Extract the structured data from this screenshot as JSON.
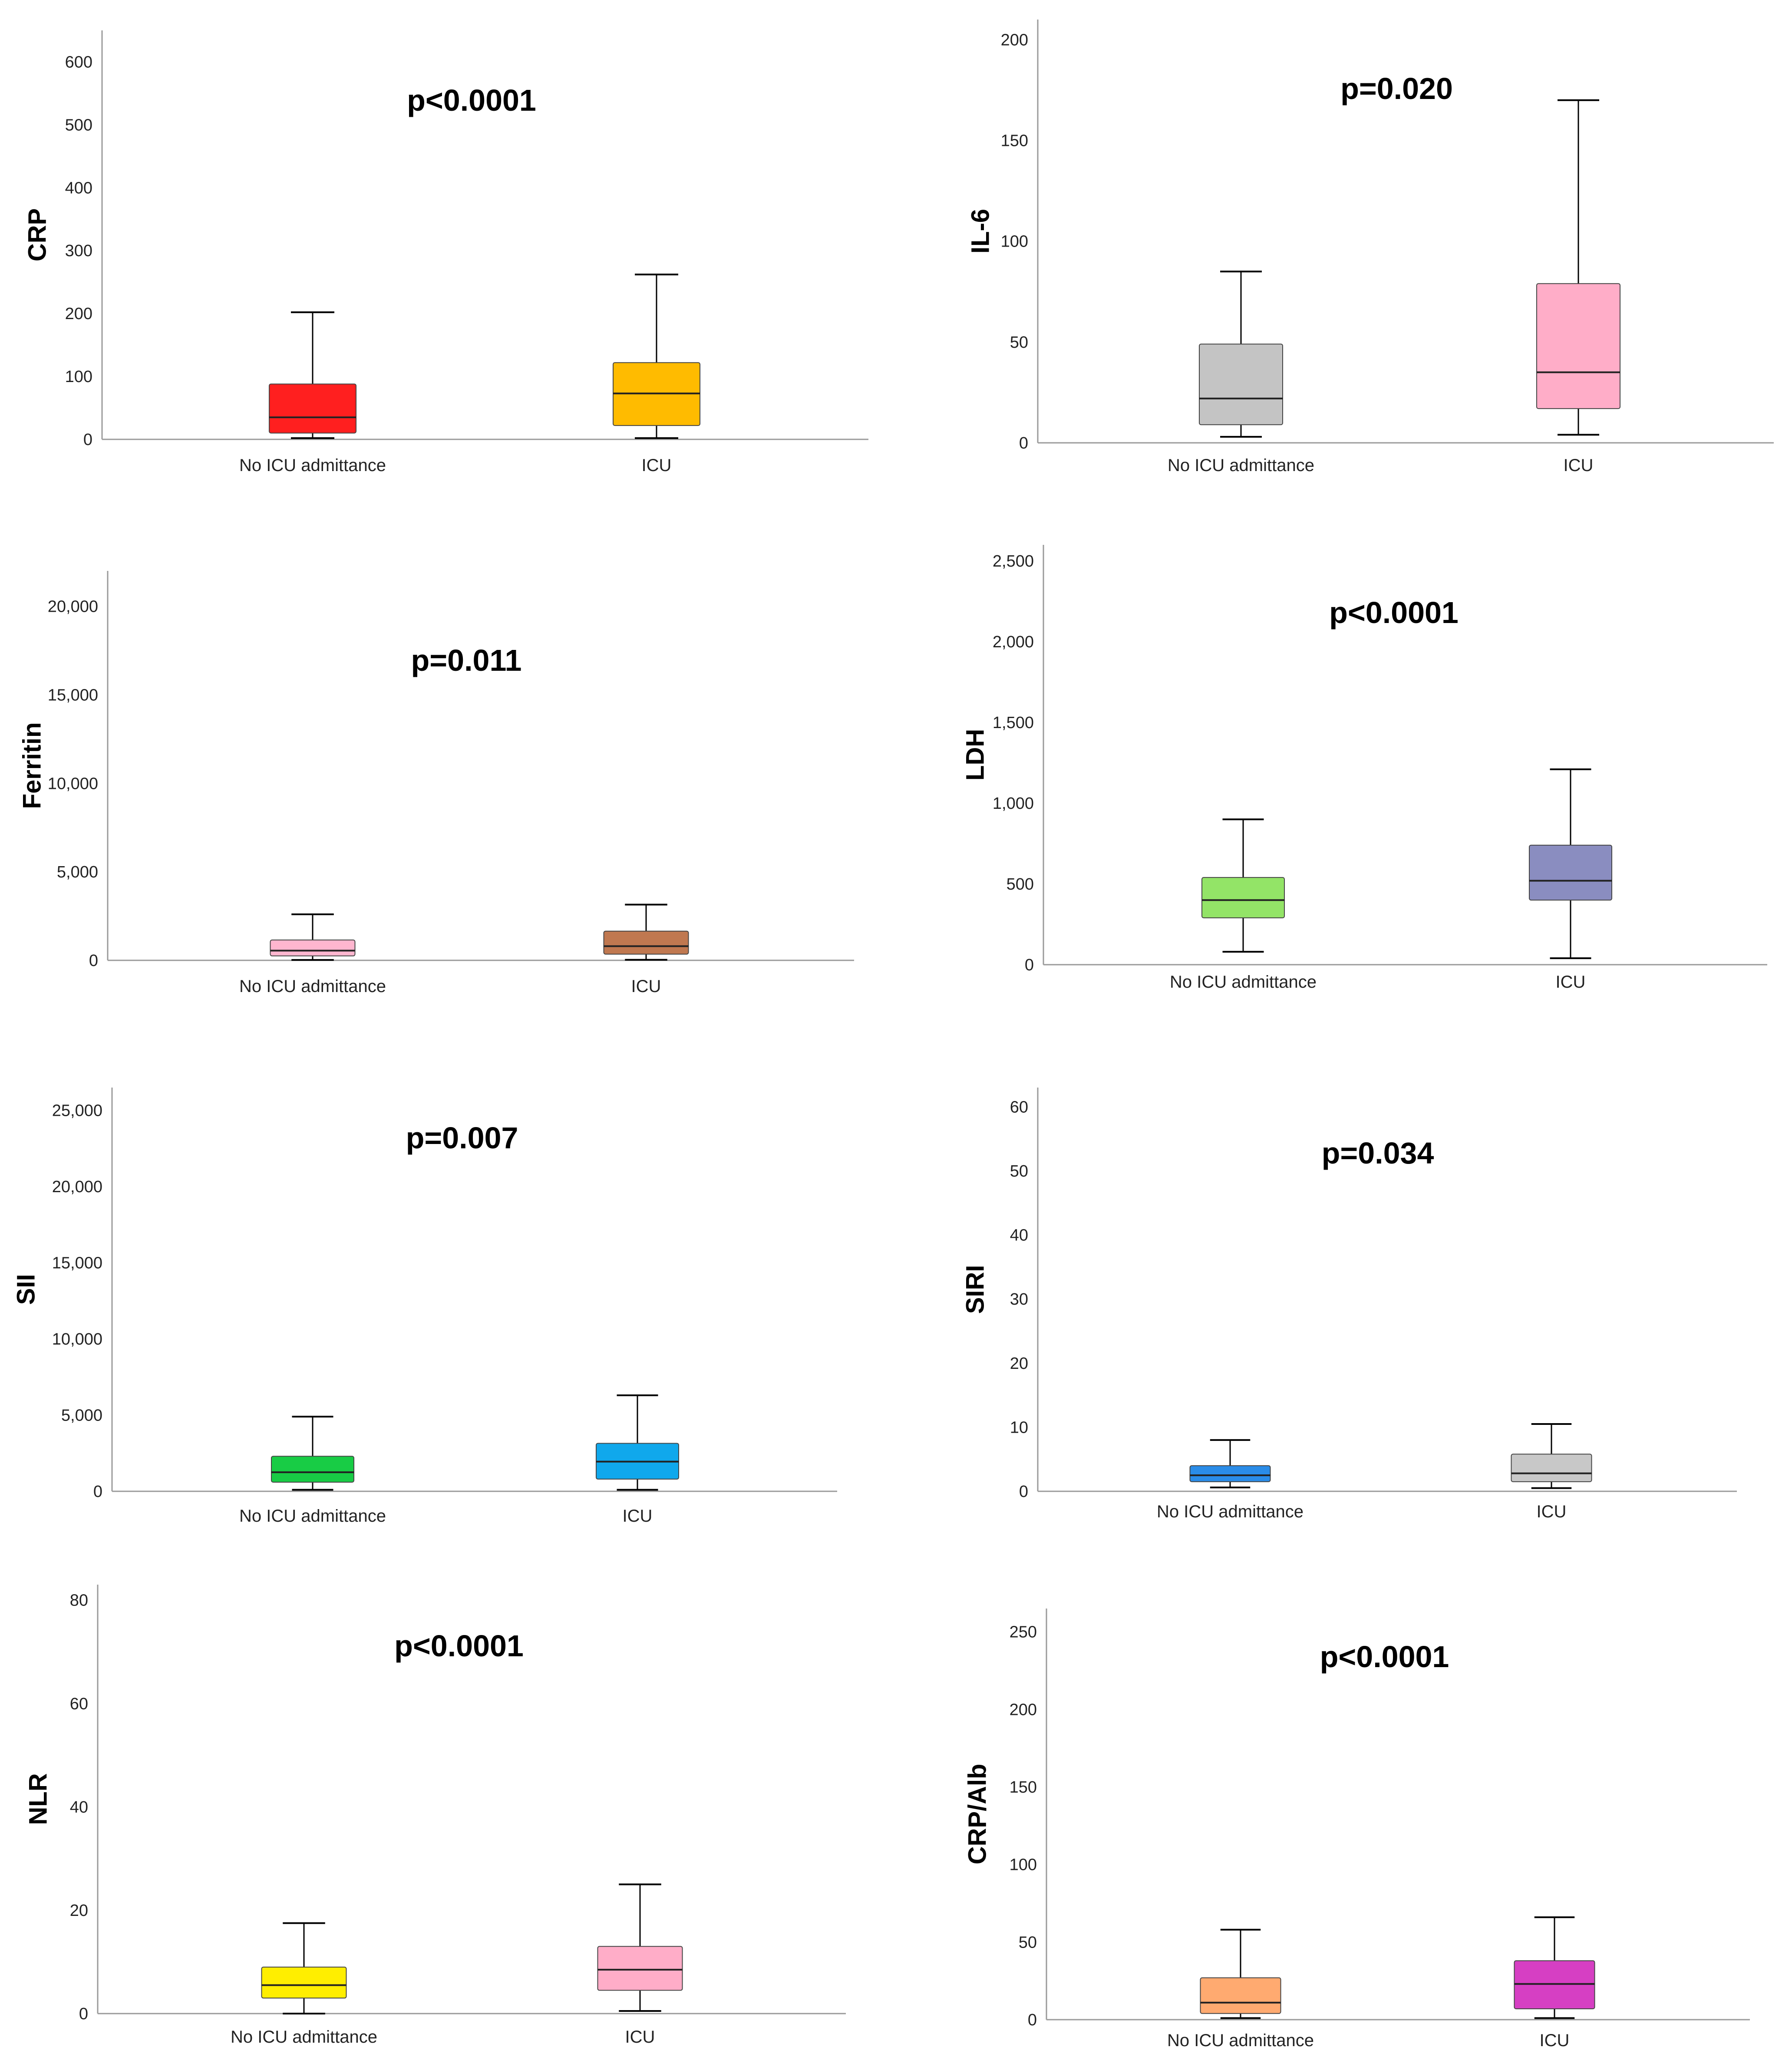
{
  "chart_data": [
    {
      "type": "boxplot",
      "title": "p<0.0001",
      "ylabel": "CRP",
      "ylim": [
        0,
        650
      ],
      "yticks": [
        0,
        100,
        200,
        300,
        400,
        500,
        600
      ],
      "ytick_labels": [
        "0",
        "100",
        "200",
        "300",
        "400",
        "500",
        "600"
      ],
      "categories": [
        "No ICU admittance",
        "ICU"
      ],
      "boxes": [
        {
          "category": "No ICU admittance",
          "whisker_low": 2,
          "q1": 10,
          "median": 35,
          "q3": 88,
          "whisker_high": 202,
          "color": "#ff1f1f"
        },
        {
          "category": "ICU",
          "whisker_low": 2,
          "q1": 22,
          "median": 73,
          "q3": 122,
          "whisker_high": 262,
          "color": "#ffbb00"
        }
      ]
    },
    {
      "type": "boxplot",
      "title": "p=0.020",
      "ylabel": "IL-6",
      "ylim": [
        0,
        210
      ],
      "yticks": [
        0,
        50,
        100,
        150,
        200
      ],
      "ytick_labels": [
        "0",
        "50",
        "100",
        "150",
        "200"
      ],
      "categories": [
        "No ICU admittance",
        "ICU"
      ],
      "boxes": [
        {
          "category": "No ICU admittance",
          "whisker_low": 3,
          "q1": 9,
          "median": 22,
          "q3": 49,
          "whisker_high": 85,
          "color": "#c4c4c4"
        },
        {
          "category": "ICU",
          "whisker_low": 4,
          "q1": 17,
          "median": 35,
          "q3": 79,
          "whisker_high": 170,
          "color": "#ffadc8"
        }
      ]
    },
    {
      "type": "boxplot",
      "title": "p=0.011",
      "ylabel": "Ferritin",
      "ylim": [
        0,
        22000
      ],
      "yticks": [
        0,
        5000,
        10000,
        15000,
        20000
      ],
      "ytick_labels": [
        "0",
        "5,000",
        "10,000",
        "15,000",
        "20,000"
      ],
      "categories": [
        "No ICU admittance",
        "ICU"
      ],
      "boxes": [
        {
          "category": "No ICU admittance",
          "whisker_low": 20,
          "q1": 250,
          "median": 550,
          "q3": 1150,
          "whisker_high": 2600,
          "color": "#ffb6cf"
        },
        {
          "category": "ICU",
          "whisker_low": 30,
          "q1": 350,
          "median": 800,
          "q3": 1650,
          "whisker_high": 3150,
          "color": "#c07850"
        }
      ]
    },
    {
      "type": "boxplot",
      "title": "p<0.0001",
      "ylabel": "LDH",
      "ylim": [
        0,
        2600
      ],
      "yticks": [
        0,
        500,
        1000,
        1500,
        2000,
        2500
      ],
      "ytick_labels": [
        "0",
        "500",
        "1,000",
        "1,500",
        "2,000",
        "2,500"
      ],
      "categories": [
        "No ICU admittance",
        "ICU"
      ],
      "boxes": [
        {
          "category": "No ICU admittance",
          "whisker_low": 80,
          "q1": 290,
          "median": 400,
          "q3": 540,
          "whisker_high": 900,
          "color": "#93e467"
        },
        {
          "category": "ICU",
          "whisker_low": 40,
          "q1": 400,
          "median": 520,
          "q3": 740,
          "whisker_high": 1210,
          "color": "#8a8dc0"
        }
      ]
    },
    {
      "type": "boxplot",
      "title": "p=0.007",
      "ylabel": "SII",
      "ylim": [
        0,
        26500
      ],
      "yticks": [
        0,
        5000,
        10000,
        15000,
        20000,
        25000
      ],
      "ytick_labels": [
        "0",
        "5,000",
        "10,000",
        "15,000",
        "20,000",
        "25,000"
      ],
      "categories": [
        "No ICU admittance",
        "ICU"
      ],
      "boxes": [
        {
          "category": "No ICU admittance",
          "whisker_low": 100,
          "q1": 600,
          "median": 1250,
          "q3": 2300,
          "whisker_high": 4900,
          "color": "#18cc45"
        },
        {
          "category": "ICU",
          "whisker_low": 100,
          "q1": 800,
          "median": 1950,
          "q3": 3150,
          "whisker_high": 6300,
          "color": "#10a8ec"
        }
      ]
    },
    {
      "type": "boxplot",
      "title": "p=0.034",
      "ylabel": "SIRI",
      "ylim": [
        0,
        63
      ],
      "yticks": [
        0,
        10,
        20,
        30,
        40,
        50,
        60
      ],
      "ytick_labels": [
        "0",
        "10",
        "20",
        "30",
        "40",
        "50",
        "60"
      ],
      "categories": [
        "No ICU admittance",
        "ICU"
      ],
      "boxes": [
        {
          "category": "No ICU admittance",
          "whisker_low": 0.6,
          "q1": 1.5,
          "median": 2.5,
          "q3": 4,
          "whisker_high": 8,
          "color": "#2a8ce8"
        },
        {
          "category": "ICU",
          "whisker_low": 0.5,
          "q1": 1.5,
          "median": 2.8,
          "q3": 5.8,
          "whisker_high": 10.5,
          "color": "#c8c8c8"
        }
      ]
    },
    {
      "type": "boxplot",
      "title": "p<0.0001",
      "ylabel": "NLR",
      "ylim": [
        0,
        83
      ],
      "yticks": [
        0,
        20,
        40,
        60,
        80
      ],
      "ytick_labels": [
        "0",
        "20",
        "40",
        "60",
        "80"
      ],
      "categories": [
        "No ICU admittance",
        "ICU"
      ],
      "boxes": [
        {
          "category": "No ICU admittance",
          "whisker_low": 0,
          "q1": 3,
          "median": 5.5,
          "q3": 9,
          "whisker_high": 17.5,
          "color": "#ffee00"
        },
        {
          "category": "ICU",
          "whisker_low": 0.5,
          "q1": 4.5,
          "median": 8.5,
          "q3": 13,
          "whisker_high": 25,
          "color": "#ffadc8"
        }
      ]
    },
    {
      "type": "boxplot",
      "title": "p<0.0001",
      "ylabel": "CRP/Alb",
      "ylim": [
        0,
        265
      ],
      "yticks": [
        0,
        50,
        100,
        150,
        200,
        250
      ],
      "ytick_labels": [
        "0",
        "50",
        "100",
        "150",
        "200",
        "250"
      ],
      "categories": [
        "No ICU admittance",
        "ICU"
      ],
      "boxes": [
        {
          "category": "No ICU admittance",
          "whisker_low": 1,
          "q1": 4,
          "median": 11,
          "q3": 27,
          "whisker_high": 58,
          "color": "#ffaa70"
        },
        {
          "category": "ICU",
          "whisker_low": 1,
          "q1": 7,
          "median": 23,
          "q3": 38,
          "whisker_high": 66,
          "color": "#d63fc3"
        }
      ]
    }
  ]
}
